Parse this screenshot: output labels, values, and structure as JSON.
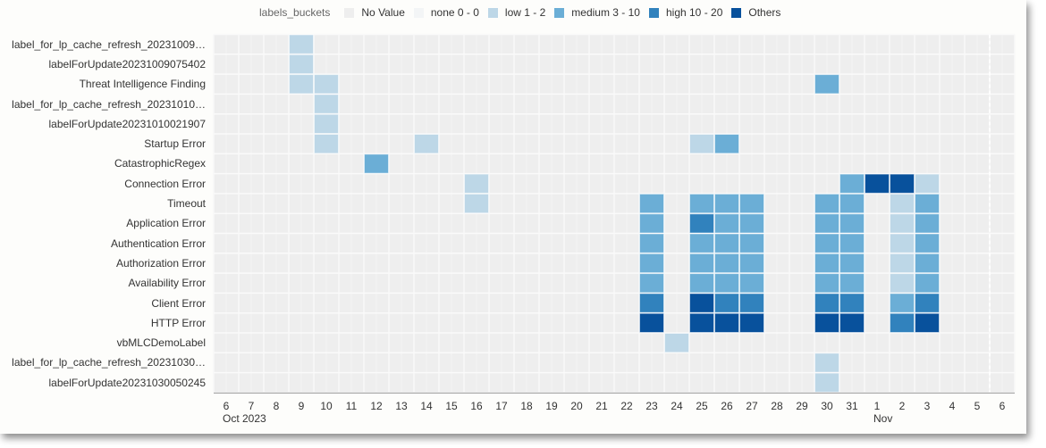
{
  "chart_data": {
    "type": "heatmap",
    "legend": {
      "title": "labels_buckets",
      "placement": "top",
      "entries": [
        {
          "label": "No Value",
          "color": "#eeeeee"
        },
        {
          "label": "none 0 - 0",
          "color": "#f3f5f6"
        },
        {
          "label": "low 1 - 2",
          "color": "#bdd7e7"
        },
        {
          "label": "medium 3 - 10",
          "color": "#6baed6"
        },
        {
          "label": "high 10 - 20",
          "color": "#3182bd"
        },
        {
          "label": "Others",
          "color": "#08519c"
        }
      ]
    },
    "x_ticks": [
      "6",
      "7",
      "8",
      "9",
      "10",
      "11",
      "12",
      "13",
      "14",
      "15",
      "16",
      "17",
      "18",
      "19",
      "20",
      "21",
      "22",
      "23",
      "24",
      "25",
      "26",
      "27",
      "28",
      "29",
      "30",
      "31",
      "1",
      "2",
      "3",
      "4",
      "5",
      "6"
    ],
    "x_month_labels": [
      {
        "label": "Oct 2023",
        "at_tick": 0
      },
      {
        "label": "Nov",
        "at_tick": 26
      }
    ],
    "y_categories": [
      "label_for_lp_cache_refresh_20231009…",
      "labelForUpdate20231009075402",
      "Threat Intelligence Finding",
      "label_for_lp_cache_refresh_20231010…",
      "labelForUpdate20231010021907",
      "Startup Error",
      "CatastrophicRegex",
      "Connection Error",
      "Timeout",
      "Application Error",
      "Authentication Error",
      "Authorization Error",
      "Availability Error",
      "Client Error",
      "HTTP Error",
      "vbMLCDemoLabel",
      "label_for_lp_cache_refresh_20231030…",
      "labelForUpdate20231030050245"
    ],
    "cells": [
      {
        "row": 0,
        "x": "Oct 9",
        "bucket": "low 1 - 2"
      },
      {
        "row": 1,
        "x": "Oct 9",
        "bucket": "low 1 - 2"
      },
      {
        "row": 2,
        "x": "Oct 9",
        "bucket": "low 1 - 2"
      },
      {
        "row": 2,
        "x": "Oct 10",
        "bucket": "low 1 - 2"
      },
      {
        "row": 2,
        "x": "Oct 30",
        "bucket": "medium 3 - 10"
      },
      {
        "row": 3,
        "x": "Oct 10",
        "bucket": "low 1 - 2"
      },
      {
        "row": 4,
        "x": "Oct 10",
        "bucket": "low 1 - 2"
      },
      {
        "row": 5,
        "x": "Oct 10",
        "bucket": "low 1 - 2"
      },
      {
        "row": 5,
        "x": "Oct 14",
        "bucket": "low 1 - 2"
      },
      {
        "row": 5,
        "x": "Oct 25",
        "bucket": "low 1 - 2"
      },
      {
        "row": 5,
        "x": "Oct 26",
        "bucket": "medium 3 - 10"
      },
      {
        "row": 6,
        "x": "Oct 12",
        "bucket": "medium 3 - 10"
      },
      {
        "row": 7,
        "x": "Oct 16",
        "bucket": "low 1 - 2"
      },
      {
        "row": 7,
        "x": "Oct 31",
        "bucket": "medium 3 - 10"
      },
      {
        "row": 7,
        "x": "Nov 1",
        "bucket": "Others"
      },
      {
        "row": 7,
        "x": "Nov 2",
        "bucket": "Others"
      },
      {
        "row": 7,
        "x": "Nov 3",
        "bucket": "low 1 - 2"
      },
      {
        "row": 8,
        "x": "Oct 16",
        "bucket": "low 1 - 2"
      },
      {
        "row": 8,
        "x": "Oct 23",
        "bucket": "medium 3 - 10"
      },
      {
        "row": 8,
        "x": "Oct 25",
        "bucket": "medium 3 - 10"
      },
      {
        "row": 8,
        "x": "Oct 26",
        "bucket": "medium 3 - 10"
      },
      {
        "row": 8,
        "x": "Oct 27",
        "bucket": "medium 3 - 10"
      },
      {
        "row": 8,
        "x": "Oct 30",
        "bucket": "medium 3 - 10"
      },
      {
        "row": 8,
        "x": "Oct 31",
        "bucket": "medium 3 - 10"
      },
      {
        "row": 8,
        "x": "Nov 2",
        "bucket": "low 1 - 2"
      },
      {
        "row": 8,
        "x": "Nov 3",
        "bucket": "medium 3 - 10"
      },
      {
        "row": 9,
        "x": "Oct 23",
        "bucket": "medium 3 - 10"
      },
      {
        "row": 9,
        "x": "Oct 25",
        "bucket": "high 10 - 20"
      },
      {
        "row": 9,
        "x": "Oct 26",
        "bucket": "medium 3 - 10"
      },
      {
        "row": 9,
        "x": "Oct 27",
        "bucket": "medium 3 - 10"
      },
      {
        "row": 9,
        "x": "Oct 30",
        "bucket": "medium 3 - 10"
      },
      {
        "row": 9,
        "x": "Oct 31",
        "bucket": "medium 3 - 10"
      },
      {
        "row": 9,
        "x": "Nov 2",
        "bucket": "low 1 - 2"
      },
      {
        "row": 9,
        "x": "Nov 3",
        "bucket": "medium 3 - 10"
      },
      {
        "row": 10,
        "x": "Oct 23",
        "bucket": "medium 3 - 10"
      },
      {
        "row": 10,
        "x": "Oct 25",
        "bucket": "medium 3 - 10"
      },
      {
        "row": 10,
        "x": "Oct 26",
        "bucket": "medium 3 - 10"
      },
      {
        "row": 10,
        "x": "Oct 27",
        "bucket": "medium 3 - 10"
      },
      {
        "row": 10,
        "x": "Oct 30",
        "bucket": "medium 3 - 10"
      },
      {
        "row": 10,
        "x": "Oct 31",
        "bucket": "medium 3 - 10"
      },
      {
        "row": 10,
        "x": "Nov 2",
        "bucket": "low 1 - 2"
      },
      {
        "row": 10,
        "x": "Nov 3",
        "bucket": "medium 3 - 10"
      },
      {
        "row": 11,
        "x": "Oct 23",
        "bucket": "medium 3 - 10"
      },
      {
        "row": 11,
        "x": "Oct 25",
        "bucket": "medium 3 - 10"
      },
      {
        "row": 11,
        "x": "Oct 26",
        "bucket": "medium 3 - 10"
      },
      {
        "row": 11,
        "x": "Oct 27",
        "bucket": "medium 3 - 10"
      },
      {
        "row": 11,
        "x": "Oct 30",
        "bucket": "medium 3 - 10"
      },
      {
        "row": 11,
        "x": "Oct 31",
        "bucket": "medium 3 - 10"
      },
      {
        "row": 11,
        "x": "Nov 2",
        "bucket": "low 1 - 2"
      },
      {
        "row": 11,
        "x": "Nov 3",
        "bucket": "medium 3 - 10"
      },
      {
        "row": 12,
        "x": "Oct 23",
        "bucket": "medium 3 - 10"
      },
      {
        "row": 12,
        "x": "Oct 25",
        "bucket": "medium 3 - 10"
      },
      {
        "row": 12,
        "x": "Oct 26",
        "bucket": "medium 3 - 10"
      },
      {
        "row": 12,
        "x": "Oct 27",
        "bucket": "medium 3 - 10"
      },
      {
        "row": 12,
        "x": "Oct 30",
        "bucket": "medium 3 - 10"
      },
      {
        "row": 12,
        "x": "Oct 31",
        "bucket": "medium 3 - 10"
      },
      {
        "row": 12,
        "x": "Nov 2",
        "bucket": "low 1 - 2"
      },
      {
        "row": 12,
        "x": "Nov 3",
        "bucket": "medium 3 - 10"
      },
      {
        "row": 13,
        "x": "Oct 23",
        "bucket": "high 10 - 20"
      },
      {
        "row": 13,
        "x": "Oct 25",
        "bucket": "Others"
      },
      {
        "row": 13,
        "x": "Oct 26",
        "bucket": "high 10 - 20"
      },
      {
        "row": 13,
        "x": "Oct 27",
        "bucket": "high 10 - 20"
      },
      {
        "row": 13,
        "x": "Oct 30",
        "bucket": "high 10 - 20"
      },
      {
        "row": 13,
        "x": "Oct 31",
        "bucket": "high 10 - 20"
      },
      {
        "row": 13,
        "x": "Nov 2",
        "bucket": "medium 3 - 10"
      },
      {
        "row": 13,
        "x": "Nov 3",
        "bucket": "high 10 - 20"
      },
      {
        "row": 14,
        "x": "Oct 23",
        "bucket": "Others"
      },
      {
        "row": 14,
        "x": "Oct 25",
        "bucket": "Others"
      },
      {
        "row": 14,
        "x": "Oct 26",
        "bucket": "Others"
      },
      {
        "row": 14,
        "x": "Oct 27",
        "bucket": "Others"
      },
      {
        "row": 14,
        "x": "Oct 30",
        "bucket": "Others"
      },
      {
        "row": 14,
        "x": "Oct 31",
        "bucket": "Others"
      },
      {
        "row": 14,
        "x": "Nov 2",
        "bucket": "high 10 - 20"
      },
      {
        "row": 14,
        "x": "Nov 3",
        "bucket": "Others"
      },
      {
        "row": 15,
        "x": "Oct 24",
        "bucket": "low 1 - 2"
      },
      {
        "row": 16,
        "x": "Oct 30",
        "bucket": "low 1 - 2"
      },
      {
        "row": 17,
        "x": "Oct 30",
        "bucket": "low 1 - 2"
      }
    ],
    "grid": true
  }
}
